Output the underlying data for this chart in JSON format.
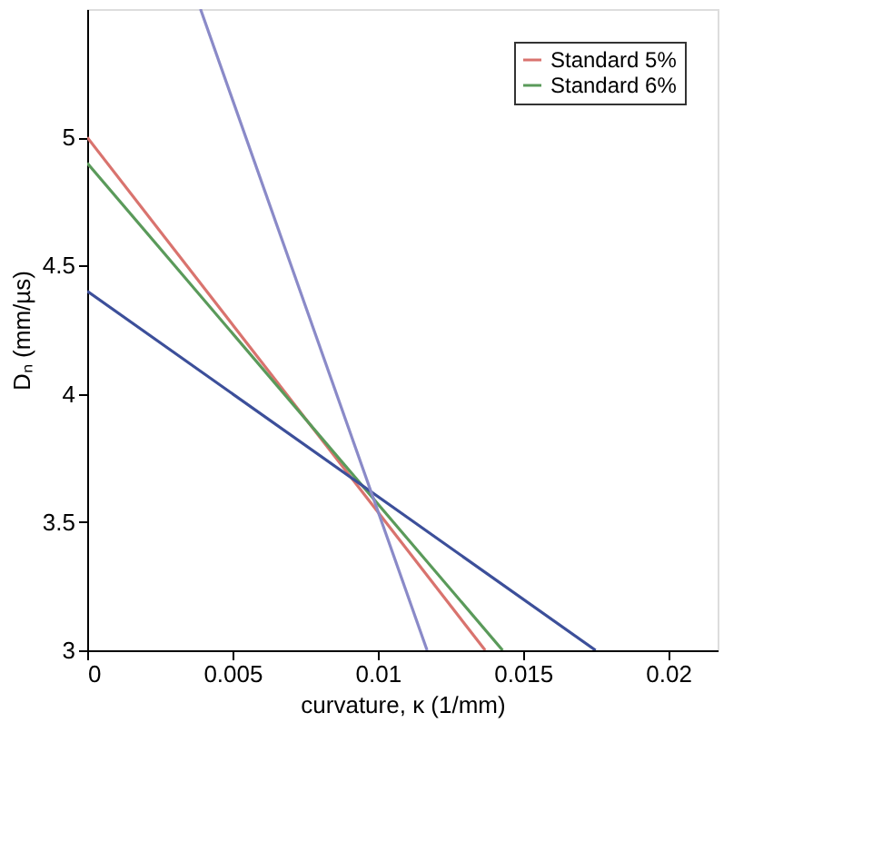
{
  "chart_data": {
    "type": "line",
    "xlabel": "curvature, κ (1/mm)",
    "ylabel": "Dₙ (mm/µs)",
    "xlim": [
      0,
      0.0217
    ],
    "ylim": [
      3,
      5.5
    ],
    "xticks": [
      0,
      0.005,
      0.01,
      0.015,
      0.02
    ],
    "yticks": [
      3,
      3.5,
      4,
      4.5,
      5
    ],
    "grid": false,
    "legend": "top right",
    "marker": "none",
    "line_style": "solid",
    "series": [
      {
        "name": "Standard 5%",
        "color": "#d9736e",
        "x": [
          0,
          0.0137
        ],
        "values": [
          5.0,
          3.0
        ]
      },
      {
        "name": "Standard 6%",
        "color": "#5a9a5a",
        "x": [
          0,
          0.0143
        ],
        "values": [
          4.9,
          3.0
        ]
      },
      {
        "color": "#3c4f9a",
        "x": [
          0,
          0.0175
        ],
        "values": [
          4.4,
          3.0
        ]
      },
      {
        "color": "#8a8ac8",
        "x": [
          0.0039,
          0.0117
        ],
        "values": [
          5.5,
          3.0
        ]
      }
    ]
  }
}
